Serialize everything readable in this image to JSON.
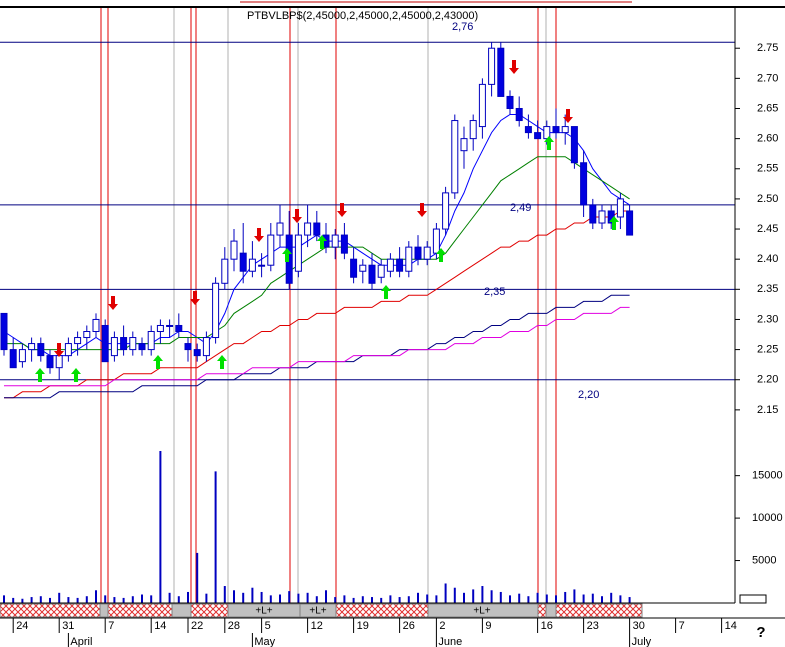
{
  "chart_data": {
    "type": "candlestick",
    "title": "PTBVLBP$(2,45000,2,45000,2,45000,2,43000)",
    "categories": [
      null,
      "24",
      null,
      null,
      null,
      null,
      "31",
      null,
      null,
      null,
      null,
      "7",
      null,
      null,
      null,
      null,
      "14",
      null,
      null,
      null,
      "22",
      null,
      null,
      null,
      "28",
      null,
      null,
      null,
      "5",
      null,
      null,
      null,
      null,
      "12",
      null,
      null,
      null,
      null,
      "19",
      null,
      null,
      null,
      null,
      "26",
      null,
      null,
      null,
      "2",
      null,
      null,
      null,
      null,
      "9",
      null,
      null,
      null,
      null,
      null,
      "16",
      null,
      null,
      null,
      null,
      "23",
      null,
      null,
      null,
      null,
      "30",
      null,
      null,
      null,
      null,
      "7",
      null,
      null,
      null,
      null,
      "14",
      null
    ],
    "month_categories": [
      null,
      null,
      null,
      null,
      null,
      null,
      null,
      "April",
      null,
      null,
      null,
      null,
      null,
      null,
      null,
      null,
      null,
      null,
      null,
      null,
      null,
      null,
      null,
      null,
      null,
      null,
      null,
      "May",
      null,
      null,
      null,
      null,
      null,
      null,
      null,
      null,
      null,
      null,
      null,
      null,
      null,
      null,
      null,
      null,
      null,
      null,
      null,
      "June",
      null,
      null,
      null,
      null,
      null,
      null,
      null,
      null,
      null,
      null,
      null,
      null,
      null,
      null,
      null,
      null,
      null,
      null,
      null,
      null,
      "July",
      null,
      null,
      null,
      null,
      null,
      null,
      null,
      null,
      null,
      null,
      null
    ],
    "open": [
      2.31,
      2.25,
      2.23,
      2.25,
      2.26,
      2.24,
      2.22,
      2.24,
      2.26,
      2.27,
      2.28,
      2.29,
      2.24,
      2.27,
      2.25,
      2.26,
      2.25,
      2.28,
      2.29,
      2.29,
      2.26,
      2.25,
      2.24,
      2.27,
      2.36,
      2.4,
      2.41,
      2.38,
      2.39,
      2.39,
      2.44,
      2.44,
      2.38,
      2.44,
      2.46,
      2.44,
      2.42,
      2.44,
      2.4,
      2.38,
      2.39,
      2.37,
      2.38,
      2.4,
      2.38,
      2.42,
      2.4,
      2.41,
      2.45,
      2.51,
      2.58,
      2.6,
      2.62,
      2.69,
      2.75,
      2.67,
      2.65,
      2.62,
      2.61,
      2.6,
      2.62,
      2.61,
      2.62,
      2.56,
      2.49,
      2.46,
      2.48,
      2.47,
      2.48,
      null,
      null,
      null,
      null,
      null,
      null,
      null,
      null,
      null,
      null,
      null
    ],
    "high": [
      2.31,
      2.27,
      2.26,
      2.27,
      2.27,
      2.25,
      2.25,
      2.27,
      2.28,
      2.29,
      2.31,
      2.3,
      2.28,
      2.29,
      2.28,
      2.27,
      2.29,
      2.3,
      2.3,
      2.31,
      2.27,
      2.26,
      2.28,
      2.37,
      2.42,
      2.45,
      2.46,
      2.43,
      2.41,
      2.46,
      2.49,
      2.48,
      2.46,
      2.49,
      2.48,
      2.46,
      2.45,
      2.46,
      2.42,
      2.4,
      2.41,
      2.4,
      2.41,
      2.42,
      2.43,
      2.44,
      2.43,
      2.46,
      2.52,
      2.64,
      2.62,
      2.64,
      2.7,
      2.76,
      2.76,
      2.68,
      2.67,
      2.64,
      2.63,
      2.63,
      2.65,
      2.64,
      2.62,
      2.58,
      2.5,
      2.49,
      2.49,
      2.51,
      2.49,
      null,
      null,
      null,
      null,
      null,
      null,
      null,
      null,
      null,
      null,
      null
    ],
    "low": [
      2.24,
      2.22,
      2.22,
      2.23,
      2.23,
      2.21,
      2.2,
      2.23,
      2.24,
      2.25,
      2.27,
      2.23,
      2.23,
      2.24,
      2.24,
      2.24,
      2.24,
      2.26,
      2.27,
      2.27,
      2.23,
      2.23,
      2.23,
      2.26,
      2.35,
      2.38,
      2.36,
      2.37,
      2.37,
      2.38,
      2.42,
      2.35,
      2.37,
      2.42,
      2.43,
      2.41,
      2.4,
      2.4,
      2.36,
      2.36,
      2.35,
      2.36,
      2.37,
      2.37,
      2.37,
      2.39,
      2.39,
      2.4,
      2.44,
      2.5,
      2.55,
      2.58,
      2.6,
      2.67,
      2.67,
      2.64,
      2.62,
      2.6,
      2.6,
      2.59,
      2.6,
      2.59,
      2.55,
      2.47,
      2.45,
      2.45,
      2.45,
      2.45,
      2.44,
      null,
      null,
      null,
      null,
      null,
      null,
      null,
      null,
      null,
      null,
      null
    ],
    "close": [
      2.25,
      2.22,
      2.25,
      2.26,
      2.24,
      2.22,
      2.24,
      2.26,
      2.27,
      2.28,
      2.3,
      2.23,
      2.27,
      2.25,
      2.27,
      2.25,
      2.28,
      2.29,
      2.29,
      2.28,
      2.25,
      2.24,
      2.27,
      2.36,
      2.4,
      2.43,
      2.38,
      2.4,
      2.39,
      2.44,
      2.46,
      2.36,
      2.44,
      2.46,
      2.44,
      2.42,
      2.44,
      2.41,
      2.37,
      2.39,
      2.36,
      2.39,
      2.4,
      2.38,
      2.42,
      2.4,
      2.42,
      2.45,
      2.51,
      2.63,
      2.6,
      2.63,
      2.69,
      2.75,
      2.67,
      2.65,
      2.63,
      2.61,
      2.6,
      2.62,
      2.61,
      2.62,
      2.56,
      2.49,
      2.46,
      2.48,
      2.46,
      2.5,
      2.44,
      null,
      null,
      null,
      null,
      null,
      null,
      null,
      null,
      null,
      null,
      null
    ],
    "up_color": "#ffffff",
    "down_color": "#0000e0",
    "candle_edge": "#0000c0",
    "series": [
      {
        "color": "#0000ff",
        "values": [
          2.28,
          2.27,
          2.26,
          2.25,
          2.25,
          2.24,
          2.24,
          2.24,
          2.25,
          2.26,
          2.27,
          2.26,
          2.26,
          2.26,
          2.26,
          2.26,
          2.26,
          2.27,
          2.27,
          2.28,
          2.28,
          2.27,
          2.26,
          2.28,
          2.31,
          2.35,
          2.37,
          2.39,
          2.4,
          2.41,
          2.42,
          2.42,
          2.42,
          2.43,
          2.44,
          2.43,
          2.43,
          2.43,
          2.42,
          2.41,
          2.4,
          2.39,
          2.39,
          2.39,
          2.39,
          2.4,
          2.4,
          2.41,
          2.44,
          2.48,
          2.51,
          2.55,
          2.58,
          2.61,
          2.63,
          2.64,
          2.64,
          2.63,
          2.62,
          2.61,
          2.61,
          2.61,
          2.6,
          2.58,
          2.55,
          2.53,
          2.51,
          2.5,
          2.49,
          null,
          null,
          null,
          null,
          null,
          null,
          null,
          null,
          null,
          null,
          null
        ]
      },
      {
        "color": "#008000",
        "values": [
          2.26,
          2.26,
          2.26,
          2.25,
          2.25,
          2.25,
          2.25,
          2.25,
          2.25,
          2.25,
          2.25,
          2.25,
          2.25,
          2.25,
          2.26,
          2.26,
          2.26,
          2.26,
          2.26,
          2.27,
          2.27,
          2.27,
          2.27,
          2.28,
          2.29,
          2.31,
          2.32,
          2.33,
          2.34,
          2.36,
          2.37,
          2.38,
          2.39,
          2.4,
          2.41,
          2.42,
          2.42,
          2.42,
          2.42,
          2.42,
          2.41,
          2.4,
          2.4,
          2.4,
          2.4,
          2.4,
          2.4,
          2.4,
          2.41,
          2.43,
          2.45,
          2.47,
          2.49,
          2.51,
          2.53,
          2.54,
          2.55,
          2.56,
          2.57,
          2.57,
          2.57,
          2.57,
          2.56,
          2.55,
          2.54,
          2.53,
          2.52,
          2.51,
          2.5,
          null,
          null,
          null,
          null,
          null,
          null,
          null,
          null,
          null,
          null,
          null
        ]
      },
      {
        "color": "#e00000",
        "values": [
          2.17,
          2.17,
          2.18,
          2.18,
          2.18,
          2.19,
          2.19,
          2.19,
          2.19,
          2.2,
          2.2,
          2.2,
          2.2,
          2.21,
          2.21,
          2.21,
          2.21,
          2.22,
          2.22,
          2.22,
          2.22,
          2.22,
          2.23,
          2.24,
          2.25,
          2.26,
          2.26,
          2.27,
          2.28,
          2.28,
          2.29,
          2.29,
          2.3,
          2.3,
          2.31,
          2.31,
          2.31,
          2.32,
          2.32,
          2.32,
          2.32,
          2.33,
          2.33,
          2.33,
          2.34,
          2.34,
          2.34,
          2.35,
          2.36,
          2.37,
          2.38,
          2.39,
          2.4,
          2.41,
          2.42,
          2.42,
          2.43,
          2.43,
          2.44,
          2.44,
          2.45,
          2.45,
          2.46,
          2.46,
          2.47,
          2.47,
          2.47,
          2.48,
          2.48,
          null,
          null,
          null,
          null,
          null,
          null,
          null,
          null,
          null,
          null,
          null
        ]
      },
      {
        "color": "#000080",
        "values": [
          2.17,
          2.17,
          2.17,
          2.17,
          2.17,
          2.17,
          2.18,
          2.18,
          2.18,
          2.18,
          2.18,
          2.18,
          2.18,
          2.18,
          2.18,
          2.19,
          2.19,
          2.19,
          2.19,
          2.19,
          2.19,
          2.19,
          2.2,
          2.2,
          2.2,
          2.2,
          2.21,
          2.21,
          2.21,
          2.21,
          2.22,
          2.22,
          2.22,
          2.22,
          2.23,
          2.23,
          2.23,
          2.23,
          2.23,
          2.24,
          2.24,
          2.24,
          2.24,
          2.25,
          2.25,
          2.25,
          2.25,
          2.26,
          2.26,
          2.27,
          2.27,
          2.28,
          2.28,
          2.29,
          2.29,
          2.3,
          2.3,
          2.31,
          2.31,
          2.31,
          2.32,
          2.32,
          2.32,
          2.33,
          2.33,
          2.33,
          2.34,
          2.34,
          2.34,
          null,
          null,
          null,
          null,
          null,
          null,
          null,
          null,
          null,
          null,
          null
        ]
      },
      {
        "color": "#e000e0",
        "values": [
          2.19,
          2.19,
          2.19,
          2.19,
          2.19,
          2.19,
          2.19,
          2.19,
          2.19,
          2.19,
          2.19,
          2.19,
          2.2,
          2.2,
          2.2,
          2.2,
          2.2,
          2.2,
          2.2,
          2.2,
          2.2,
          2.2,
          2.21,
          2.21,
          2.21,
          2.21,
          2.21,
          2.22,
          2.22,
          2.22,
          2.22,
          2.22,
          2.23,
          2.23,
          2.23,
          2.23,
          2.23,
          2.23,
          2.24,
          2.24,
          2.24,
          2.24,
          2.24,
          2.24,
          2.25,
          2.25,
          2.25,
          2.25,
          2.25,
          2.26,
          2.26,
          2.26,
          2.27,
          2.27,
          2.27,
          2.28,
          2.28,
          2.28,
          2.29,
          2.29,
          2.3,
          2.3,
          2.3,
          2.31,
          2.31,
          2.31,
          2.31,
          2.32,
          2.32,
          null,
          null,
          null,
          null,
          null,
          null,
          null,
          null,
          null,
          null,
          null
        ]
      }
    ],
    "ylim": [
      2.1,
      2.83
    ],
    "yticks": [
      2.15,
      {
        "value": 2.2,
        "label": "2.20"
      },
      2.25,
      {
        "value": 2.3,
        "label": "2.30"
      },
      2.35,
      {
        "value": 2.4,
        "label": "2.40"
      },
      2.45,
      {
        "value": 2.5,
        "label": "2.50"
      },
      2.55,
      {
        "value": 2.6,
        "label": "2.60"
      },
      2.65,
      {
        "value": 2.7,
        "label": "2.70"
      },
      2.75
    ],
    "hlines": [
      {
        "value": 2.76,
        "label": "2,76"
      },
      {
        "value": 2.49,
        "label": "2,49"
      },
      {
        "value": 2.35,
        "label": "2,35"
      },
      {
        "value": 2.2,
        "label": "2,20"
      }
    ],
    "hline_color": "#000080",
    "volume": [
      900,
      600,
      500,
      700,
      800,
      600,
      1200,
      700,
      600,
      800,
      1500,
      900,
      700,
      600,
      800,
      1000,
      900,
      17900,
      1200,
      800,
      1300,
      5900,
      1100,
      15500,
      2000,
      1500,
      1200,
      1800,
      1300,
      900,
      1000,
      1400,
      1100,
      1200,
      800,
      1500,
      700,
      900,
      600,
      800,
      700,
      600,
      900,
      700,
      800,
      1200,
      1000,
      900,
      2300,
      1800,
      1200,
      1600,
      2000,
      1500,
      1300,
      900,
      1100,
      800,
      1200,
      1000,
      900,
      1300,
      1600,
      1000,
      1100,
      800,
      1200,
      900,
      700,
      null,
      null,
      null,
      null,
      null,
      null,
      null,
      null,
      null,
      null,
      null
    ],
    "volume_color": "#0000c0",
    "volume_ylim": [
      0,
      19200
    ],
    "volume_yticks": [
      5000,
      10000,
      15000
    ],
    "strip_labels": [
      "+L+",
      "+L+",
      "+L+"
    ],
    "help": "?"
  }
}
